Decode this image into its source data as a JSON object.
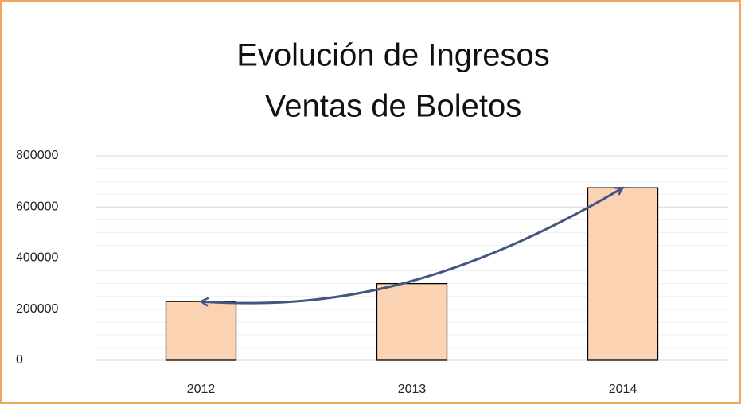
{
  "chart_data": {
    "type": "bar",
    "title": [
      "Evolución de Ingresos",
      "Ventas de Boletos"
    ],
    "categories": [
      "2012",
      "2013",
      "2014"
    ],
    "values": [
      230000,
      300000,
      675000
    ],
    "color": "#fbd3b3",
    "ylim": [
      0,
      800000
    ],
    "yticks": [
      0,
      200000,
      400000,
      600000,
      800000
    ],
    "grid": true,
    "minor_grid": true
  }
}
